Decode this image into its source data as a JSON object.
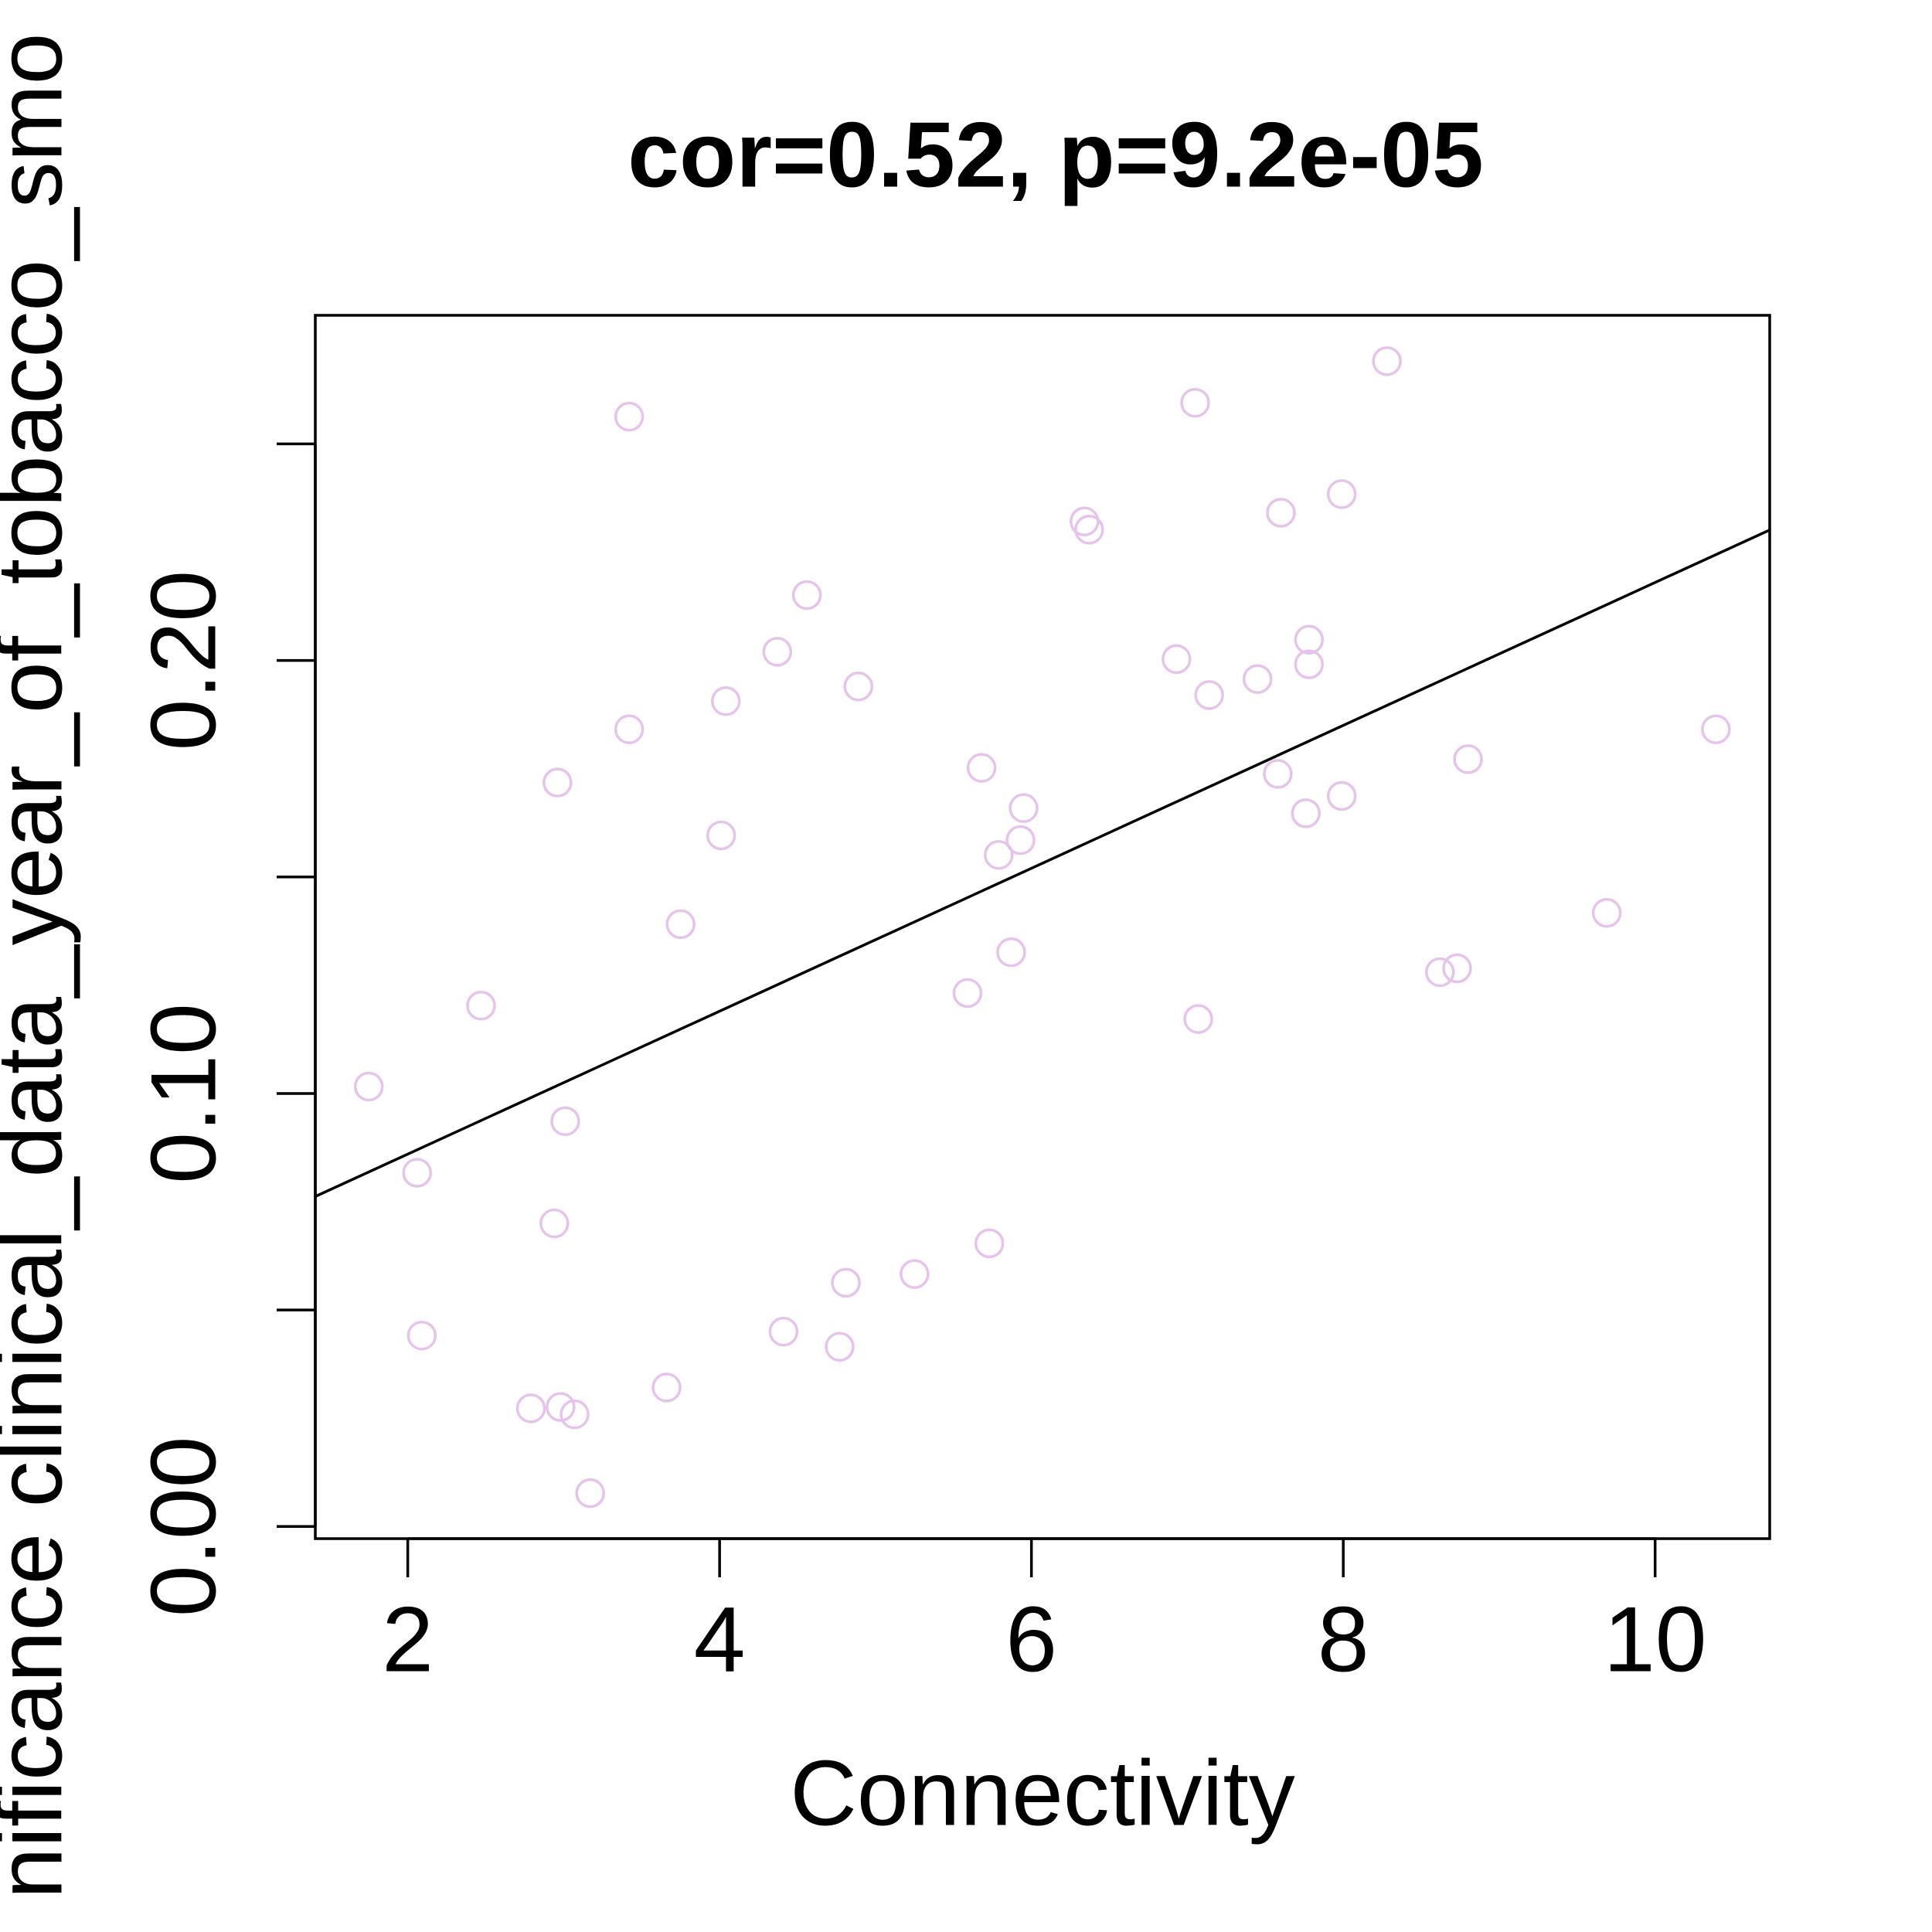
{
  "chart_data": {
    "type": "scatter",
    "title": "cor=0.52, p=9.2e-05",
    "x_label": "Connectivity",
    "y_label": "nificance clinical_data_year_of_tobacco_smo",
    "color": "#e6c3ea",
    "line_color": "#000000",
    "x": [
      1.75,
      2.06,
      2.09,
      2.47,
      2.79,
      2.96,
      2.94,
      2.98,
      3.01,
      3.07,
      3.17,
      3.42,
      3.42,
      3.66,
      3.75,
      4.01,
      4.04,
      4.37,
      4.41,
      4.56,
      4.77,
      4.81,
      4.89,
      5.25,
      5.59,
      5.68,
      5.73,
      5.79,
      5.87,
      5.93,
      5.95,
      6.34,
      6.37,
      6.93,
      7.05,
      7.07,
      7.14,
      7.45,
      7.58,
      7.6,
      7.76,
      7.78,
      7.78,
      7.99,
      7.99,
      8.28,
      8.62,
      8.73,
      8.8,
      9.69,
      10.39
    ],
    "values": [
      0.1016,
      0.0817,
      0.0441,
      0.1203,
      0.0273,
      0.1718,
      0.07,
      0.0276,
      0.0936,
      0.0259,
      0.0077,
      0.2563,
      0.1841,
      0.0321,
      0.1391,
      0.1596,
      0.1906,
      0.202,
      0.045,
      0.2151,
      0.0415,
      0.0563,
      0.194,
      0.0583,
      0.1232,
      0.1752,
      0.0654,
      0.1551,
      0.1326,
      0.1585,
      0.1659,
      0.2321,
      0.2302,
      0.2003,
      0.2595,
      0.1172,
      0.192,
      0.1957,
      0.1738,
      0.2341,
      0.1647,
      0.2048,
      0.1991,
      0.2384,
      0.1687,
      0.2691,
      0.128,
      0.1289,
      0.1772,
      0.1417,
      0.1841
    ],
    "trend_line": {
      "slope": 0.0165,
      "intercept": 0.053
    },
    "xlim": [
      1.407,
      10.735
    ],
    "ylim": [
      -0.0028,
      0.2797
    ],
    "xticks": [
      2,
      4,
      6,
      8,
      10
    ],
    "yticks": [
      {
        "value": 0,
        "label": "0.00"
      },
      {
        "value": 0.05,
        "label": null
      },
      {
        "value": 0.1,
        "label": "0.10"
      },
      {
        "value": 0.15,
        "label": null
      },
      {
        "value": 0.2,
        "label": "0.20"
      },
      {
        "value": 0.25,
        "label": null
      }
    ]
  }
}
